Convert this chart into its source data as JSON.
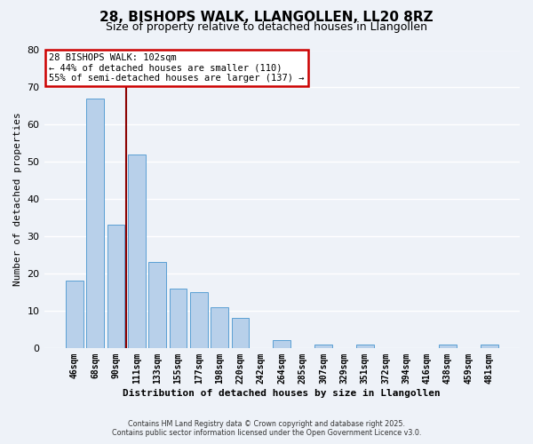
{
  "title": "28, BISHOPS WALK, LLANGOLLEN, LL20 8RZ",
  "subtitle": "Size of property relative to detached houses in Llangollen",
  "xlabel": "Distribution of detached houses by size in Llangollen",
  "ylabel": "Number of detached properties",
  "footer_line1": "Contains HM Land Registry data © Crown copyright and database right 2025.",
  "footer_line2": "Contains public sector information licensed under the Open Government Licence v3.0.",
  "bin_labels": [
    "46sqm",
    "68sqm",
    "90sqm",
    "111sqm",
    "133sqm",
    "155sqm",
    "177sqm",
    "198sqm",
    "220sqm",
    "242sqm",
    "264sqm",
    "285sqm",
    "307sqm",
    "329sqm",
    "351sqm",
    "372sqm",
    "394sqm",
    "416sqm",
    "438sqm",
    "459sqm",
    "481sqm"
  ],
  "bar_values": [
    18,
    67,
    33,
    52,
    23,
    16,
    15,
    11,
    8,
    0,
    2,
    0,
    1,
    0,
    1,
    0,
    0,
    0,
    1,
    0,
    1
  ],
  "bar_color": "#b8d0ea",
  "bar_edge_color": "#5a9fd4",
  "vline_x": 2.5,
  "vline_color": "#8b0000",
  "annotation_text_line1": "28 BISHOPS WALK: 102sqm",
  "annotation_text_line2": "← 44% of detached houses are smaller (110)",
  "annotation_text_line3": "55% of semi-detached houses are larger (137) →",
  "annotation_box_color": "white",
  "annotation_border_color": "#cc0000",
  "ylim": [
    0,
    80
  ],
  "background_color": "#eef2f8",
  "grid_color": "white",
  "title_fontsize": 11,
  "subtitle_fontsize": 9,
  "ylabel_fontsize": 8,
  "xlabel_fontsize": 8
}
